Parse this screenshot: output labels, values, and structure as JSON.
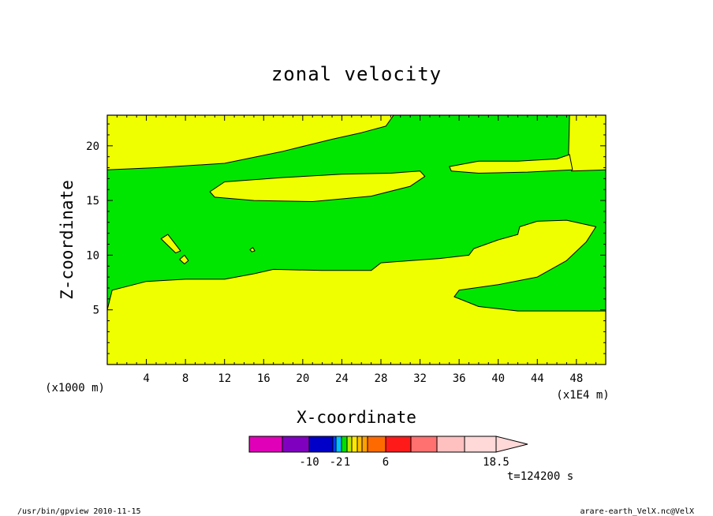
{
  "chart_data": {
    "type": "contour",
    "title": "zonal velocity",
    "xlabel": "X-coordinate",
    "ylabel": "Z-coordinate",
    "x_unit": "(x1000 m)",
    "x_scale_note": "(x1E4 m)",
    "xlim": [
      0,
      51
    ],
    "ylim": [
      0,
      22.8
    ],
    "xticks": [
      "4",
      "8",
      "12",
      "16",
      "20",
      "24",
      "28",
      "32",
      "36",
      "40",
      "44",
      "48"
    ],
    "yticks": [
      "5",
      "10",
      "15",
      "20"
    ],
    "time_label": "t=124200 s",
    "fill_colors": {
      "positive_band": "#f0ff00",
      "negative_band": "#00e600"
    },
    "regions": [
      {
        "band": "negative",
        "boundary": [
          [
            0,
            5
          ],
          [
            0.5,
            6.8
          ],
          [
            4,
            7.6
          ],
          [
            8,
            7.8
          ],
          [
            12,
            7.8
          ],
          [
            15,
            8.3
          ],
          [
            17,
            8.7
          ],
          [
            22,
            8.6
          ],
          [
            27,
            8.6
          ],
          [
            28,
            9.3
          ],
          [
            34,
            9.7
          ],
          [
            37,
            10.0
          ],
          [
            37.5,
            10.6
          ],
          [
            40,
            11.4
          ],
          [
            42,
            11.9
          ],
          [
            42.2,
            12.6
          ],
          [
            44,
            13.1
          ],
          [
            47,
            13.2
          ],
          [
            50,
            12.6
          ],
          [
            49,
            11.2
          ],
          [
            47,
            9.5
          ],
          [
            44,
            8.0
          ],
          [
            40,
            7.3
          ],
          [
            36,
            6.8
          ],
          [
            35.5,
            6.2
          ],
          [
            38,
            5.3
          ],
          [
            42,
            4.9
          ],
          [
            51,
            4.9
          ],
          [
            51,
            17.8
          ],
          [
            47.5,
            17.7
          ],
          [
            47.2,
            19.3
          ],
          [
            47.3,
            22.8
          ],
          [
            29.3,
            22.8
          ],
          [
            28.5,
            21.8
          ],
          [
            26,
            21.2
          ],
          [
            23,
            20.6
          ],
          [
            18,
            19.5
          ],
          [
            12,
            18.4
          ],
          [
            5,
            18.0
          ],
          [
            0,
            17.8
          ]
        ]
      },
      {
        "band": "positive",
        "boundary": [
          [
            10.5,
            15.8
          ],
          [
            12,
            16.7
          ],
          [
            18,
            17.1
          ],
          [
            24,
            17.4
          ],
          [
            29,
            17.5
          ],
          [
            32,
            17.7
          ],
          [
            32.5,
            17.2
          ],
          [
            31,
            16.3
          ],
          [
            27,
            15.4
          ],
          [
            21,
            14.9
          ],
          [
            15,
            15.0
          ],
          [
            11,
            15.3
          ]
        ]
      },
      {
        "band": "positive",
        "boundary": [
          [
            35,
            18.1
          ],
          [
            38,
            18.6
          ],
          [
            42,
            18.6
          ],
          [
            46,
            18.8
          ],
          [
            47.3,
            19.2
          ],
          [
            47.6,
            17.8
          ],
          [
            43,
            17.6
          ],
          [
            38,
            17.5
          ],
          [
            35.2,
            17.7
          ]
        ]
      },
      {
        "band": "positive",
        "boundary": [
          [
            5.5,
            11.5
          ],
          [
            6.2,
            11.9
          ],
          [
            7.5,
            10.4
          ],
          [
            7.0,
            10.2
          ]
        ]
      },
      {
        "band": "positive",
        "boundary": [
          [
            7.4,
            9.6
          ],
          [
            7.9,
            10.0
          ],
          [
            8.3,
            9.5
          ],
          [
            7.9,
            9.2
          ]
        ]
      },
      {
        "band": "positive",
        "boundary": [
          [
            14.6,
            10.5
          ],
          [
            14.9,
            10.7
          ],
          [
            15.1,
            10.4
          ],
          [
            14.8,
            10.3
          ]
        ]
      }
    ],
    "colorbar": {
      "colors": [
        "#e000b8",
        "#8000c0",
        "#0000c8",
        "#0040ff",
        "#00c0ff",
        "#00e000",
        "#c0e800",
        "#ffe800",
        "#ffc000",
        "#ffa000",
        "#ff6a00",
        "#ff1a1a",
        "#ff7070",
        "#ffc0c0",
        "#ffd8d8"
      ],
      "widths": [
        42,
        34,
        30,
        4,
        7,
        7,
        6,
        7,
        6,
        7,
        23,
        32,
        33,
        35,
        40
      ],
      "labels": [
        {
          "text": "-10",
          "after_segment": 1
        },
        {
          "text": "-2",
          "after_segment": 3
        },
        {
          "text": "1",
          "after_segment": 5
        },
        {
          "text": "6",
          "after_segment": 10
        },
        {
          "text": "18.5",
          "after_segment": 14
        }
      ]
    }
  },
  "footer": {
    "left": "/usr/bin/gpview  2010-11-15",
    "right": "arare-earth_VelX.nc@VelX"
  }
}
